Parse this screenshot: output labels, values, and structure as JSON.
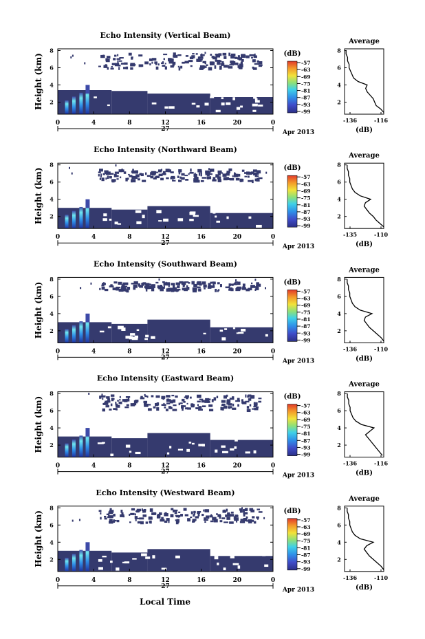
{
  "figure": {
    "xlabel_bottom": "Local Time",
    "date_label": "Apr 2013",
    "day_label": "27",
    "ylabel": "Height (km)",
    "colorbar_unit": "(dB)",
    "profile_title": "Average",
    "profile_xlabel": "(dB)"
  },
  "chart_data": [
    {
      "type": "heatmap",
      "title": "Echo Intensity (Vertical Beam)",
      "x_ticks": [
        "0",
        "4",
        "8",
        "12",
        "16",
        "20",
        "0"
      ],
      "y_ticks": [
        "2",
        "4",
        "6",
        "8"
      ],
      "xlim": [
        0,
        24
      ],
      "ylim": [
        0.6,
        8.2
      ],
      "colorbar_ticks": [
        "-57",
        "-63",
        "-69",
        "-75",
        "-81",
        "-87",
        "-93",
        "-99"
      ],
      "profile": {
        "xticks": [
          "-136",
          "-116"
        ],
        "yticks": [
          "2",
          "4",
          "6",
          "8"
        ],
        "xlim": [
          -136,
          -110
        ],
        "heights": [
          0.8,
          1.2,
          1.6,
          2.0,
          2.4,
          2.8,
          3.2,
          3.6,
          4.0,
          4.4,
          4.8,
          5.2,
          5.6,
          6.0,
          6.4,
          6.8,
          7.2,
          7.6,
          8.0
        ],
        "values": [
          -110,
          -112,
          -115,
          -116,
          -117,
          -119,
          -121,
          -122,
          -121,
          -127,
          -130,
          -131,
          -132,
          -133,
          -133,
          -134,
          -134,
          -135,
          -135
        ]
      },
      "low_layer_top_km": [
        3.4,
        3.3,
        3.0,
        2.6
      ],
      "upper_cloud_km": [
        6.0,
        7.8
      ]
    },
    {
      "type": "heatmap",
      "title": "Echo Intensity (Northward Beam)",
      "x_ticks": [
        "0",
        "4",
        "8",
        "12",
        "16",
        "20",
        "0"
      ],
      "y_ticks": [
        "2",
        "4",
        "6",
        "8"
      ],
      "xlim": [
        0,
        24
      ],
      "ylim": [
        0.6,
        8.2
      ],
      "colorbar_ticks": [
        "-57",
        "-63",
        "-69",
        "-75",
        "-81",
        "-87",
        "-93",
        "-99"
      ],
      "profile": {
        "xticks": [
          "-135",
          "-110"
        ],
        "yticks": [
          "2",
          "4",
          "6",
          "8"
        ],
        "xlim": [
          -138,
          -108
        ],
        "heights": [
          0.8,
          1.2,
          1.6,
          2.0,
          2.4,
          2.8,
          3.2,
          3.6,
          4.0,
          4.4,
          4.8,
          5.2,
          5.6,
          6.0,
          6.4,
          6.8,
          7.2,
          7.6,
          8.0
        ],
        "values": [
          -108,
          -111,
          -114,
          -116,
          -119,
          -121,
          -123,
          -122,
          -118,
          -126,
          -130,
          -132,
          -133,
          -134,
          -134,
          -135,
          -135,
          -136,
          -136
        ]
      },
      "low_layer_top_km": [
        3.0,
        2.8,
        3.2,
        2.4
      ],
      "upper_cloud_km": [
        6.2,
        7.6
      ]
    },
    {
      "type": "heatmap",
      "title": "Echo Intensity (Southward Beam)",
      "x_ticks": [
        "0",
        "4",
        "8",
        "12",
        "16",
        "20",
        "0"
      ],
      "y_ticks": [
        "2",
        "4",
        "6",
        "8"
      ],
      "xlim": [
        0,
        24
      ],
      "ylim": [
        0.6,
        8.2
      ],
      "colorbar_ticks": [
        "-57",
        "-63",
        "-69",
        "-75",
        "-81",
        "-87",
        "-93",
        "-99"
      ],
      "profile": {
        "xticks": [
          "-136",
          "-110"
        ],
        "yticks": [
          "2",
          "4",
          "6",
          "8"
        ],
        "xlim": [
          -138,
          -108
        ],
        "heights": [
          0.8,
          1.2,
          1.6,
          2.0,
          2.4,
          2.8,
          3.2,
          3.6,
          4.0,
          4.4,
          4.8,
          5.2,
          5.6,
          6.0,
          6.4,
          6.8,
          7.2,
          7.6,
          8.0
        ],
        "values": [
          -108,
          -110,
          -113,
          -116,
          -119,
          -121,
          -123,
          -122,
          -117,
          -126,
          -130,
          -132,
          -133,
          -134,
          -134,
          -135,
          -135,
          -136,
          -136
        ]
      },
      "low_layer_top_km": [
        3.0,
        2.8,
        3.3,
        2.4
      ],
      "upper_cloud_km": [
        6.8,
        7.8
      ]
    },
    {
      "type": "heatmap",
      "title": "Echo Intensity (Eastward Beam)",
      "x_ticks": [
        "0",
        "4",
        "8",
        "12",
        "16",
        "20",
        "0"
      ],
      "y_ticks": [
        "2",
        "4",
        "6",
        "8"
      ],
      "xlim": [
        0,
        24
      ],
      "ylim": [
        0.6,
        8.2
      ],
      "colorbar_ticks": [
        "-57",
        "-63",
        "-69",
        "-75",
        "-81",
        "-87",
        "-93",
        "-99"
      ],
      "profile": {
        "xticks": [
          "-136",
          "-116"
        ],
        "yticks": [
          "2",
          "4",
          "6",
          "8"
        ],
        "xlim": [
          -138,
          -110
        ],
        "heights": [
          0.8,
          1.2,
          1.6,
          2.0,
          2.4,
          2.8,
          3.2,
          3.6,
          4.0,
          4.4,
          4.8,
          5.2,
          5.6,
          6.0,
          6.4,
          6.8,
          7.2,
          7.6,
          8.0
        ],
        "values": [
          -111,
          -113,
          -115,
          -117,
          -119,
          -121,
          -123,
          -120,
          -117,
          -126,
          -130,
          -132,
          -133,
          -134,
          -134,
          -135,
          -135,
          -136,
          -136
        ]
      },
      "low_layer_top_km": [
        3.0,
        2.8,
        3.4,
        2.6
      ],
      "upper_cloud_km": [
        6.2,
        7.9
      ]
    },
    {
      "type": "heatmap",
      "title": "Echo Intensity (Westward Beam)",
      "x_ticks": [
        "0",
        "4",
        "8",
        "12",
        "16",
        "20",
        "0"
      ],
      "y_ticks": [
        "2",
        "4",
        "6",
        "8"
      ],
      "xlim": [
        0,
        24
      ],
      "ylim": [
        0.6,
        8.2
      ],
      "colorbar_ticks": [
        "-57",
        "-63",
        "-69",
        "-75",
        "-81",
        "-87",
        "-93",
        "-99"
      ],
      "profile": {
        "xticks": [
          "-136",
          "-110"
        ],
        "yticks": [
          "2",
          "4",
          "6",
          "8"
        ],
        "xlim": [
          -138,
          -108
        ],
        "heights": [
          0.8,
          1.2,
          1.6,
          2.0,
          2.4,
          2.8,
          3.2,
          3.6,
          4.0,
          4.4,
          4.8,
          5.2,
          5.6,
          6.0,
          6.4,
          6.8,
          7.2,
          7.6,
          8.0
        ],
        "values": [
          -108,
          -110,
          -113,
          -116,
          -119,
          -121,
          -123,
          -121,
          -116,
          -126,
          -130,
          -132,
          -133,
          -134,
          -134,
          -135,
          -135,
          -136,
          -136
        ]
      },
      "low_layer_top_km": [
        3.0,
        2.8,
        3.2,
        2.4
      ],
      "upper_cloud_km": [
        6.4,
        8.0
      ]
    }
  ]
}
